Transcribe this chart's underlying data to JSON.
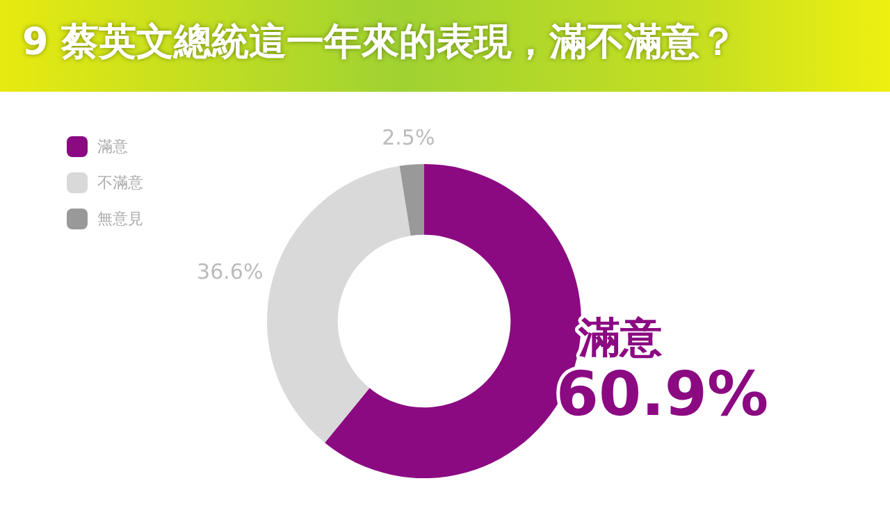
{
  "chart_data": {
    "type": "donut",
    "title": "9 蔡英文總統這一年來的表現，滿不滿意？",
    "categories": [
      "滿意",
      "不滿意",
      "無意見"
    ],
    "values": [
      60.9,
      36.6,
      2.5
    ],
    "colors": [
      "#8b0a82",
      "#d9d9d9",
      "#999999"
    ],
    "value_labels": [
      "60.9%",
      "36.6%",
      "2.5%"
    ],
    "legend": "top left"
  }
}
